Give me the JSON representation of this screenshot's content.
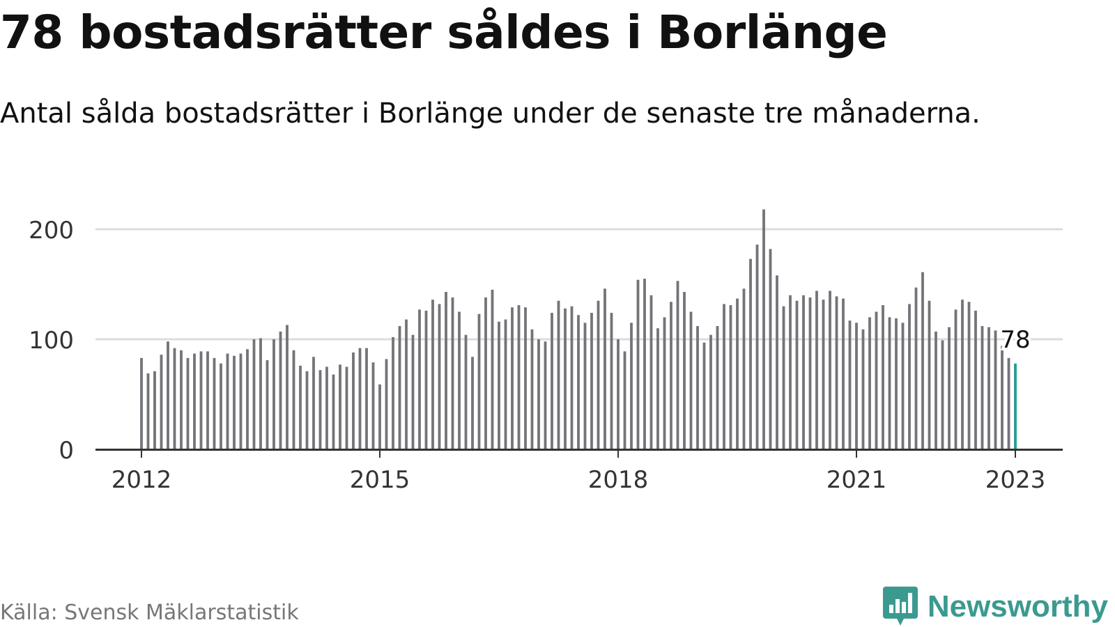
{
  "header": {
    "title": "78 bostadsrätter såldes i Borlänge",
    "subtitle": "Antal sålda bostadsrätter i Borlänge under de senaste tre månaderna."
  },
  "footer": {
    "source": "Källa: Svensk Mäklarstatistik",
    "brand": "Newsworthy",
    "brand_icon": "bar-chart-speech-bubble-icon"
  },
  "colors": {
    "bar": "#737378",
    "highlight": "#1f9e92",
    "grid": "#dcdcdc",
    "axis": "#333333",
    "brand": "#3b9a90"
  },
  "chart_data": {
    "type": "bar",
    "title": "78 bostadsrätter såldes i Borlänge",
    "xlabel": "",
    "ylabel": "",
    "ylim": [
      0,
      220
    ],
    "yticks": [
      0,
      100,
      200
    ],
    "xticks": [
      "2012",
      "2015",
      "2018",
      "2021",
      "2023"
    ],
    "grid": true,
    "highlight_label": "78",
    "series": [
      {
        "values": [
          83,
          69,
          71,
          86,
          98,
          92,
          90,
          83,
          87,
          89,
          89,
          83,
          78,
          87,
          85,
          87,
          91,
          100,
          101,
          81,
          100,
          107,
          113,
          90,
          76,
          71,
          84,
          72,
          75,
          68,
          77,
          75,
          88,
          92,
          92,
          79,
          59,
          82,
          102,
          112,
          118,
          104,
          127,
          126,
          136,
          132,
          143,
          138,
          125,
          104,
          84,
          123,
          138,
          145,
          116,
          118,
          129,
          131,
          129,
          109,
          100,
          98,
          124,
          135,
          128,
          130,
          122,
          115,
          124,
          135,
          146,
          124,
          100,
          89,
          115,
          154,
          155,
          140,
          110,
          120,
          134,
          153,
          143,
          125,
          112,
          97,
          104,
          112,
          132,
          131,
          137,
          146,
          173,
          186,
          218,
          182,
          158,
          130,
          140,
          135,
          140,
          138,
          144,
          136,
          144,
          139,
          137,
          117,
          115,
          109,
          120,
          125,
          131,
          120,
          119,
          115,
          132,
          147,
          161,
          135,
          107,
          99,
          111,
          127,
          136,
          134,
          126,
          112,
          111,
          108,
          94,
          83,
          78
        ]
      }
    ]
  }
}
